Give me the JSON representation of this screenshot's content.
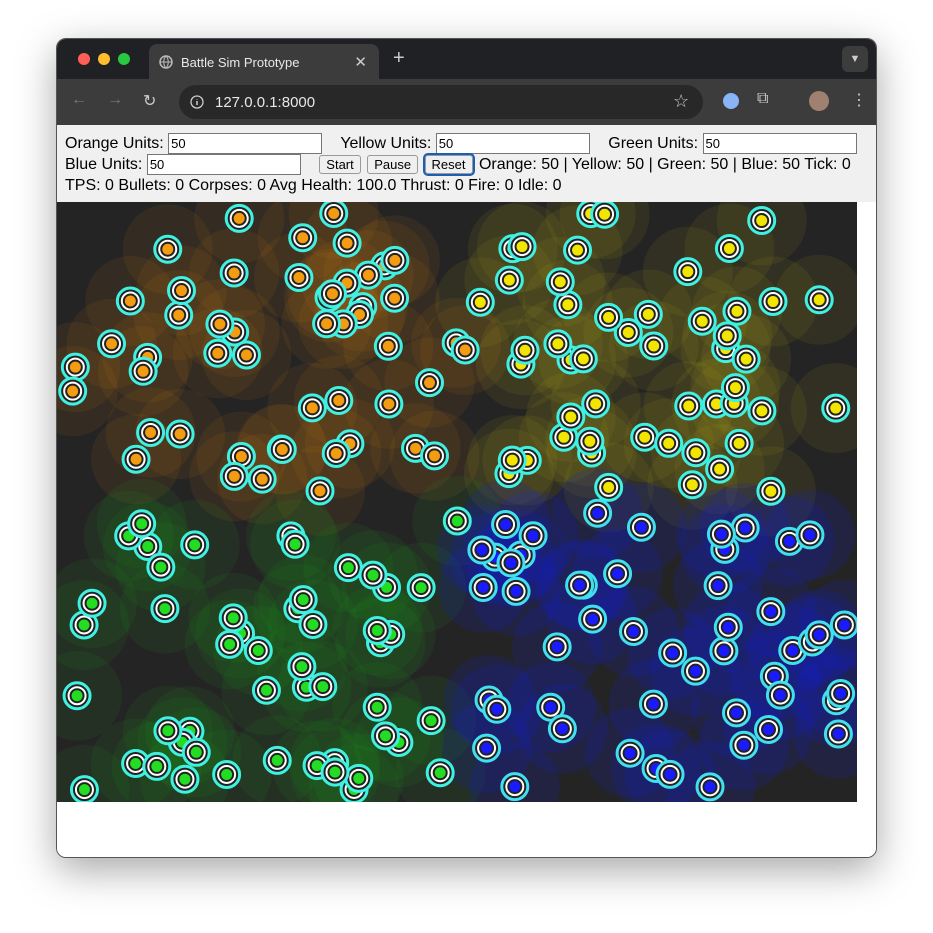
{
  "browser": {
    "tab_title": "Battle Sim Prototype",
    "url": "127.0.0.1:8000"
  },
  "controls": {
    "fields": [
      {
        "label": "Orange Units:",
        "value": "50"
      },
      {
        "label": "Yellow Units:",
        "value": "50"
      },
      {
        "label": "Green Units:",
        "value": "50"
      },
      {
        "label": "Blue Units:",
        "value": "50"
      }
    ],
    "buttons": [
      "Start",
      "Pause",
      "Reset"
    ],
    "status": "Orange: 50 | Yellow: 50 | Green: 50 | Blue: 50 Tick: 0",
    "stats": "TPS: 0 Bullets: 0 Corpses: 0 Avg Health: 100.0 Thrust: 0 Fire: 0 Idle: 0"
  }
}
